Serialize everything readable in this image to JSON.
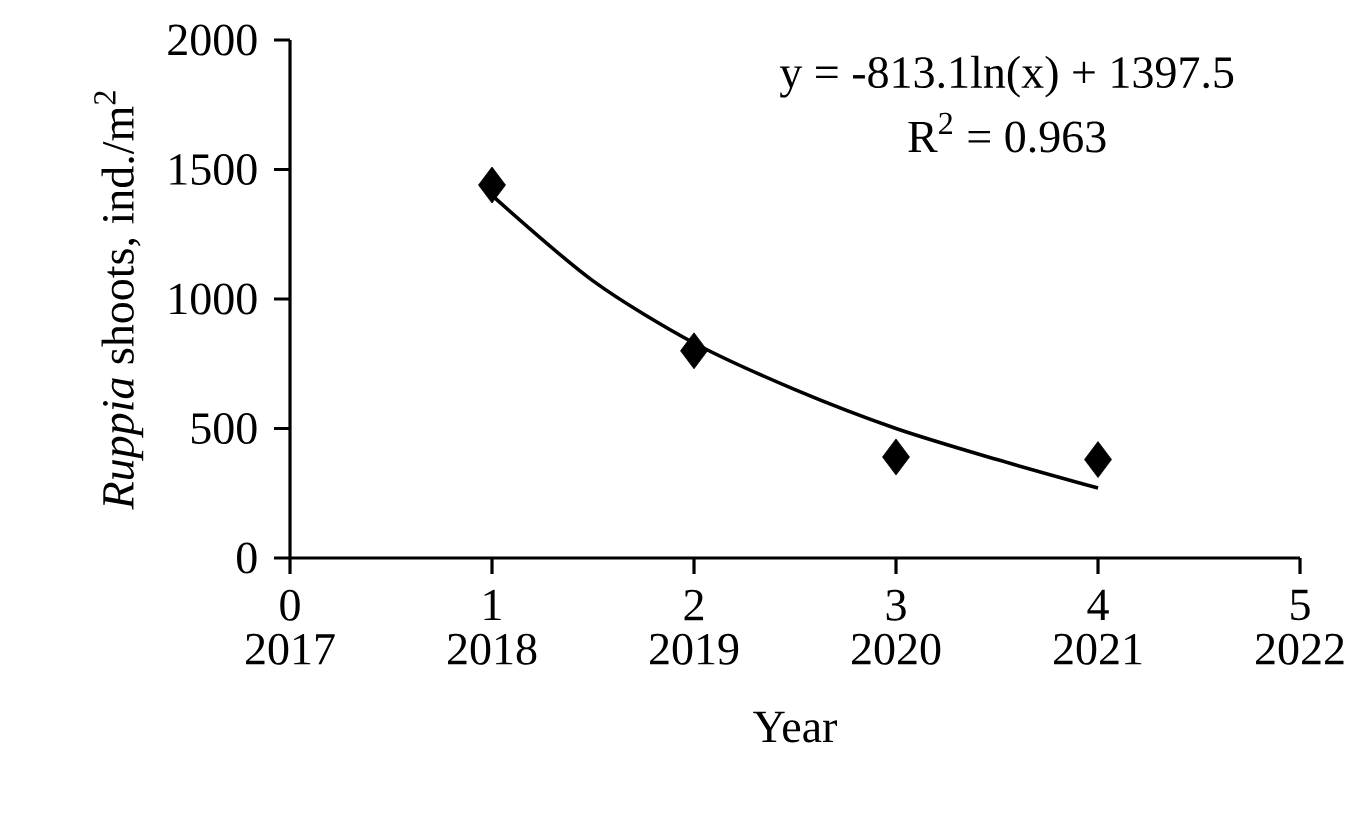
{
  "chart_data": {
    "type": "scatter",
    "xlabel": "Year",
    "ylabel": "*Ruppia* shoots, ind./m$^{2}$",
    "annotations": [
      "y = -813.1ln(x) + 1397.5",
      "R$^{2}$ = 0.963"
    ],
    "xlim": [
      0,
      5
    ],
    "xticks": [
      0,
      1,
      2,
      3,
      4,
      5
    ],
    "x2lim": [
      2017,
      2022
    ],
    "x2ticks": [
      2017,
      2018,
      2019,
      2020,
      2021,
      2022
    ],
    "ylim": [
      0,
      2000
    ],
    "yticks": [
      0,
      500,
      1000,
      1500,
      2000
    ],
    "marker": "diamond",
    "series": [
      {
        "color": "#000000",
        "x": [
          1,
          2,
          3,
          4
        ],
        "values": [
          1440,
          800,
          390,
          380
        ]
      },
      {
        "type": "line",
        "color": "#000000",
        "marker": "none",
        "x": [
          1,
          1.5,
          2,
          2.5,
          3,
          3.5,
          4
        ],
        "values": [
          1400,
          1070,
          830,
          650,
          500,
          380,
          270
        ]
      }
    ]
  }
}
